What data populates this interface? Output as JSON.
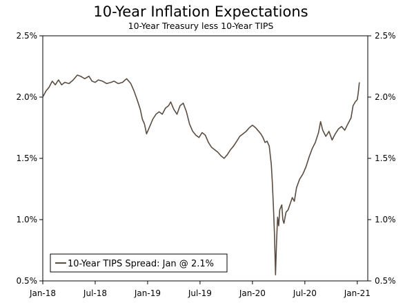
{
  "chart_data": {
    "type": "line",
    "title": "10-Year Inflation Expectations",
    "subtitle": "10-Year Treasury less 10-Year TIPS",
    "xlabel": "",
    "ylabel": "",
    "x_ticks": [
      "Jan-18",
      "Jul-18",
      "Jan-19",
      "Jul-19",
      "Jan-20",
      "Jul-20",
      "Jan-21"
    ],
    "y_ticks": [
      "0.5%",
      "1.0%",
      "1.5%",
      "2.0%",
      "2.5%"
    ],
    "y_tick_values": [
      0.5,
      1.0,
      1.5,
      2.0,
      2.5
    ],
    "ylim": [
      0.5,
      2.5
    ],
    "xlim": [
      2018.0,
      2021.1
    ],
    "legend_position": "bottom-left",
    "line_color": "#5a4b40",
    "series": [
      {
        "name": "10-Year TIPS Spread: Jan @ 2.1%",
        "points": [
          [
            2018.0,
            2.0
          ],
          [
            2018.03,
            2.05
          ],
          [
            2018.06,
            2.08
          ],
          [
            2018.09,
            2.13
          ],
          [
            2018.12,
            2.1
          ],
          [
            2018.15,
            2.14
          ],
          [
            2018.18,
            2.1
          ],
          [
            2018.21,
            2.12
          ],
          [
            2018.25,
            2.11
          ],
          [
            2018.29,
            2.14
          ],
          [
            2018.33,
            2.18
          ],
          [
            2018.36,
            2.17
          ],
          [
            2018.4,
            2.15
          ],
          [
            2018.44,
            2.17
          ],
          [
            2018.47,
            2.13
          ],
          [
            2018.5,
            2.12
          ],
          [
            2018.53,
            2.14
          ],
          [
            2018.57,
            2.13
          ],
          [
            2018.61,
            2.11
          ],
          [
            2018.65,
            2.12
          ],
          [
            2018.68,
            2.13
          ],
          [
            2018.72,
            2.11
          ],
          [
            2018.76,
            2.12
          ],
          [
            2018.8,
            2.15
          ],
          [
            2018.84,
            2.11
          ],
          [
            2018.87,
            2.05
          ],
          [
            2018.9,
            1.98
          ],
          [
            2018.93,
            1.9
          ],
          [
            2018.95,
            1.82
          ],
          [
            2018.97,
            1.78
          ],
          [
            2018.99,
            1.7
          ],
          [
            2019.02,
            1.76
          ],
          [
            2019.05,
            1.82
          ],
          [
            2019.08,
            1.86
          ],
          [
            2019.11,
            1.88
          ],
          [
            2019.14,
            1.86
          ],
          [
            2019.17,
            1.91
          ],
          [
            2019.2,
            1.93
          ],
          [
            2019.22,
            1.96
          ],
          [
            2019.25,
            1.9
          ],
          [
            2019.28,
            1.86
          ],
          [
            2019.31,
            1.93
          ],
          [
            2019.34,
            1.95
          ],
          [
            2019.37,
            1.88
          ],
          [
            2019.4,
            1.78
          ],
          [
            2019.43,
            1.72
          ],
          [
            2019.46,
            1.69
          ],
          [
            2019.49,
            1.67
          ],
          [
            2019.52,
            1.71
          ],
          [
            2019.55,
            1.69
          ],
          [
            2019.58,
            1.63
          ],
          [
            2019.61,
            1.59
          ],
          [
            2019.64,
            1.57
          ],
          [
            2019.67,
            1.55
          ],
          [
            2019.7,
            1.52
          ],
          [
            2019.73,
            1.5
          ],
          [
            2019.76,
            1.53
          ],
          [
            2019.79,
            1.57
          ],
          [
            2019.82,
            1.6
          ],
          [
            2019.85,
            1.64
          ],
          [
            2019.88,
            1.68
          ],
          [
            2019.91,
            1.7
          ],
          [
            2019.94,
            1.72
          ],
          [
            2019.97,
            1.75
          ],
          [
            2020.0,
            1.77
          ],
          [
            2020.03,
            1.75
          ],
          [
            2020.06,
            1.72
          ],
          [
            2020.08,
            1.7
          ],
          [
            2020.1,
            1.67
          ],
          [
            2020.12,
            1.63
          ],
          [
            2020.14,
            1.64
          ],
          [
            2020.16,
            1.6
          ],
          [
            2020.18,
            1.45
          ],
          [
            2020.19,
            1.3
          ],
          [
            2020.2,
            1.1
          ],
          [
            2020.21,
            0.88
          ],
          [
            2020.22,
            0.55
          ],
          [
            2020.23,
            0.82
          ],
          [
            2020.24,
            1.02
          ],
          [
            2020.25,
            0.95
          ],
          [
            2020.26,
            1.08
          ],
          [
            2020.28,
            1.12
          ],
          [
            2020.29,
            1.0
          ],
          [
            2020.3,
            0.97
          ],
          [
            2020.32,
            1.06
          ],
          [
            2020.34,
            1.08
          ],
          [
            2020.36,
            1.13
          ],
          [
            2020.38,
            1.18
          ],
          [
            2020.4,
            1.15
          ],
          [
            2020.42,
            1.26
          ],
          [
            2020.45,
            1.33
          ],
          [
            2020.48,
            1.37
          ],
          [
            2020.51,
            1.43
          ],
          [
            2020.54,
            1.51
          ],
          [
            2020.57,
            1.58
          ],
          [
            2020.6,
            1.63
          ],
          [
            2020.63,
            1.71
          ],
          [
            2020.65,
            1.8
          ],
          [
            2020.67,
            1.73
          ],
          [
            2020.7,
            1.68
          ],
          [
            2020.73,
            1.72
          ],
          [
            2020.76,
            1.65
          ],
          [
            2020.79,
            1.7
          ],
          [
            2020.82,
            1.74
          ],
          [
            2020.85,
            1.76
          ],
          [
            2020.88,
            1.73
          ],
          [
            2020.91,
            1.78
          ],
          [
            2020.94,
            1.83
          ],
          [
            2020.96,
            1.93
          ],
          [
            2020.98,
            1.96
          ],
          [
            2021.0,
            1.98
          ],
          [
            2021.01,
            2.04
          ],
          [
            2021.02,
            2.12
          ]
        ]
      }
    ]
  }
}
